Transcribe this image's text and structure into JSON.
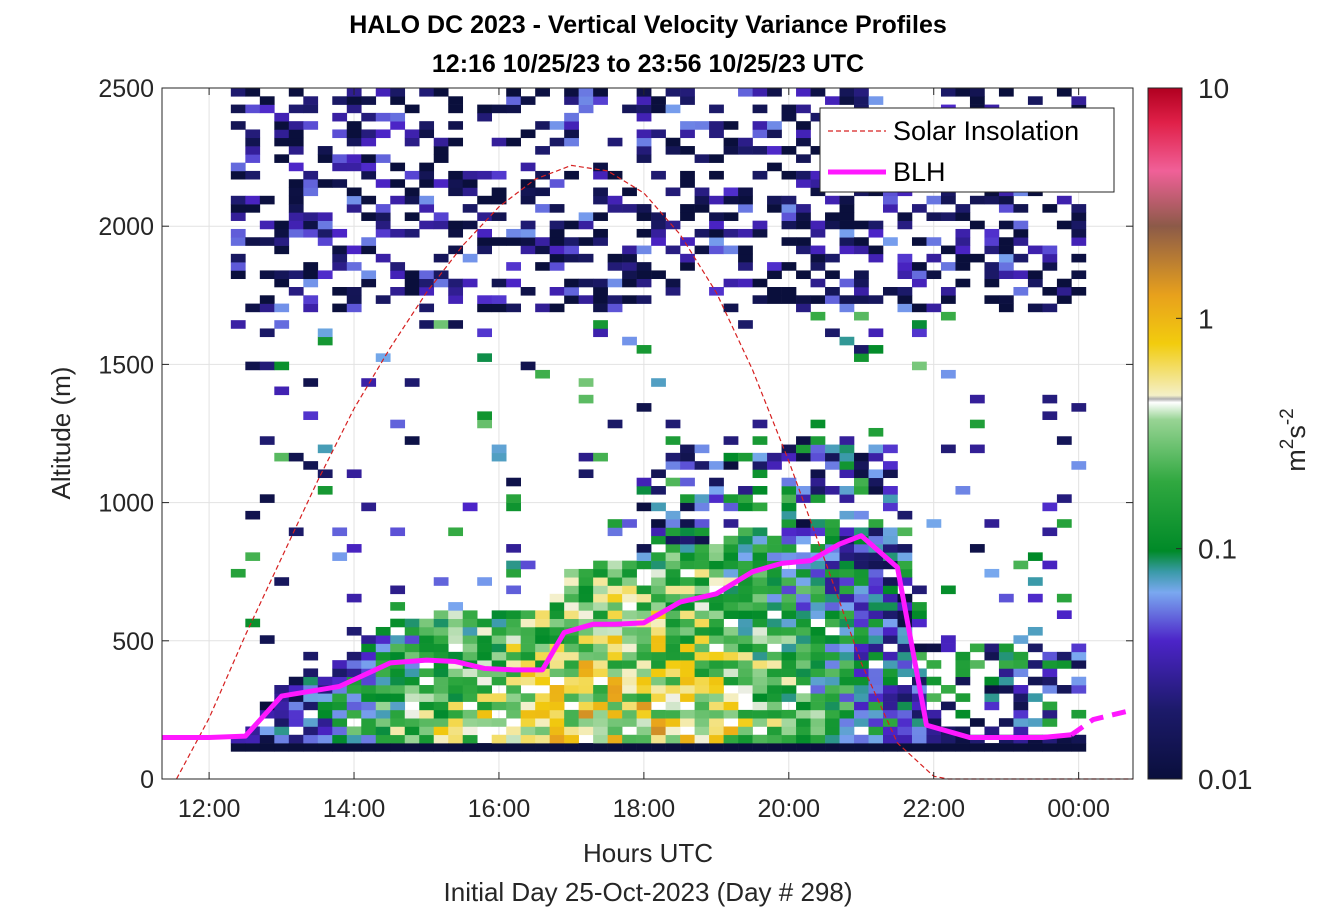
{
  "chart_data": {
    "type": "heatmap",
    "title": "HALO DC 2023 - Vertical Velocity Variance Profiles",
    "subtitle": "12:16 10/25/23 to 23:56 10/25/23  UTC",
    "xlabel": "Hours UTC",
    "xlabel2": "Initial Day 25-Oct-2023 (Day # 298)",
    "ylabel": "Altitude (m)",
    "colorbar_label": "m²s⁻²",
    "colorbar_label_base": "m",
    "colorbar_label_sup1": "2",
    "colorbar_label_mid": "s",
    "colorbar_label_sup2": "-2",
    "colorbar_scale": "log",
    "colorbar_range": [
      0.01,
      10
    ],
    "colorbar_ticks": [
      "0.01",
      "0.1",
      "1",
      "10"
    ],
    "xlim_hours": [
      11.35,
      24.75
    ],
    "ylim": [
      0,
      2500
    ],
    "x_ticks": [
      {
        "hour": 12,
        "label": "12:00"
      },
      {
        "hour": 14,
        "label": "14:00"
      },
      {
        "hour": 16,
        "label": "16:00"
      },
      {
        "hour": 18,
        "label": "18:00"
      },
      {
        "hour": 20,
        "label": "20:00"
      },
      {
        "hour": 22,
        "label": "22:00"
      },
      {
        "hour": 24,
        "label": "00:00"
      }
    ],
    "y_ticks": [
      "0",
      "500",
      "1000",
      "1500",
      "2000",
      "2500"
    ],
    "grid": true,
    "legend_position": "top-right",
    "legend": [
      {
        "label": "Solar Insolation",
        "style": "dashed",
        "color": "#d62020"
      },
      {
        "label": "BLH",
        "style": "solid",
        "color": "#ff18ff"
      }
    ],
    "heatmap_x_range_hours": [
      12.3,
      24.0
    ],
    "heatmap_y_range": [
      100,
      2500
    ],
    "blh_series": {
      "name": "BLH",
      "x_hours": [
        11.35,
        12.0,
        12.5,
        13.0,
        13.8,
        14.5,
        15.0,
        15.4,
        15.8,
        16.2,
        16.6,
        16.9,
        17.3,
        17.6,
        18.0,
        18.5,
        19.0,
        19.5,
        19.9,
        20.3,
        20.7,
        21.0,
        21.5,
        21.9,
        22.5,
        23.0,
        23.5,
        23.9
      ],
      "values": [
        150,
        150,
        155,
        300,
        335,
        420,
        430,
        425,
        400,
        395,
        395,
        530,
        560,
        560,
        565,
        640,
        670,
        750,
        780,
        790,
        850,
        880,
        765,
        195,
        150,
        150,
        150,
        160
      ]
    },
    "blh_dashed_tail": {
      "x_hours": [
        23.9,
        24.2,
        24.75
      ],
      "values": [
        160,
        215,
        250
      ]
    },
    "solar_insolation": {
      "name": "Solar Insolation",
      "x_hours": [
        11.55,
        12.0,
        12.5,
        13.0,
        13.5,
        14.0,
        14.5,
        15.0,
        15.5,
        16.0,
        16.5,
        17.0,
        17.5,
        18.0,
        18.5,
        19.0,
        19.5,
        20.0,
        20.5,
        21.0,
        21.5,
        22.0,
        22.2,
        24.75
      ],
      "values": [
        0,
        220,
        520,
        800,
        1080,
        1340,
        1560,
        1760,
        1930,
        2070,
        2170,
        2220,
        2200,
        2120,
        1970,
        1760,
        1480,
        1150,
        790,
        420,
        130,
        10,
        0,
        0
      ]
    }
  },
  "colors": {
    "blh": "#ff18ff",
    "solar": "#d62020",
    "grid": "#e2e2e2",
    "axis": "#262626"
  }
}
